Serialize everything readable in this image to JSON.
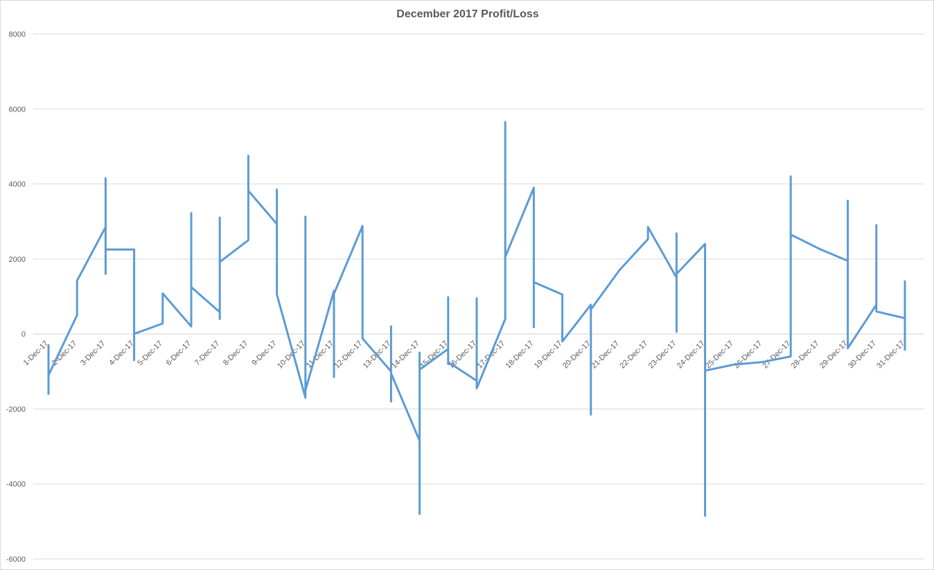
{
  "chart_data": {
    "type": "line",
    "title": "December 2017 Profit/Loss",
    "xlabel": "",
    "ylabel": "",
    "ylim": [
      -6000,
      8000
    ],
    "yticks": [
      8000,
      6000,
      4000,
      2000,
      0,
      -2000,
      -4000,
      -6000
    ],
    "grid": true,
    "legend": "none",
    "color": "#5b9bd5",
    "categories": [
      "1-Dec-17",
      "2-Dec-17",
      "3-Dec-17",
      "4-Dec-17",
      "5-Dec-17",
      "6-Dec-17",
      "7-Dec-17",
      "8-Dec-17",
      "9-Dec-17",
      "10-Dec-17",
      "11-Dec-17",
      "12-Dec-17",
      "13-Dec-17",
      "14-Dec-17",
      "15-Dec-17",
      "16-Dec-17",
      "17-Dec-17",
      "18-Dec-17",
      "19-Dec-17",
      "20-Dec-17",
      "21-Dec-17",
      "22-Dec-17",
      "23-Dec-17",
      "24-Dec-17",
      "25-Dec-17",
      "26-Dec-17",
      "27-Dec-17",
      "28-Dec-17",
      "29-Dec-17",
      "30-Dec-17",
      "31-Dec-17"
    ],
    "points": [
      {
        "x": 0,
        "y": -300
      },
      {
        "x": 0,
        "y": -1600
      },
      {
        "x": 0,
        "y": -1100
      },
      {
        "x": 1,
        "y": 500
      },
      {
        "x": 1,
        "y": 1420
      },
      {
        "x": 2,
        "y": 2850
      },
      {
        "x": 2,
        "y": 4150
      },
      {
        "x": 2,
        "y": 1600
      },
      {
        "x": 2,
        "y": 2250
      },
      {
        "x": 3,
        "y": 2250
      },
      {
        "x": 3,
        "y": -700
      },
      {
        "x": 3,
        "y": 0
      },
      {
        "x": 4,
        "y": 280
      },
      {
        "x": 4,
        "y": 1080
      },
      {
        "x": 5,
        "y": 200
      },
      {
        "x": 5,
        "y": 3220
      },
      {
        "x": 5,
        "y": 1250
      },
      {
        "x": 6,
        "y": 580
      },
      {
        "x": 6,
        "y": 400
      },
      {
        "x": 6,
        "y": 3100
      },
      {
        "x": 6,
        "y": 1920
      },
      {
        "x": 7,
        "y": 2500
      },
      {
        "x": 7,
        "y": 4750
      },
      {
        "x": 7,
        "y": 3820
      },
      {
        "x": 8,
        "y": 2930
      },
      {
        "x": 8,
        "y": 3850
      },
      {
        "x": 8,
        "y": 1050
      },
      {
        "x": 9,
        "y": -1700
      },
      {
        "x": 9,
        "y": 3130
      },
      {
        "x": 9,
        "y": -1500
      },
      {
        "x": 10,
        "y": 1150
      },
      {
        "x": 10,
        "y": -1150
      },
      {
        "x": 10,
        "y": 1070
      },
      {
        "x": 11,
        "y": 2880
      },
      {
        "x": 11,
        "y": -120
      },
      {
        "x": 12,
        "y": -1000
      },
      {
        "x": 12,
        "y": 200
      },
      {
        "x": 12,
        "y": -1800
      },
      {
        "x": 12,
        "y": -1050
      },
      {
        "x": 13,
        "y": -2850
      },
      {
        "x": 13,
        "y": -4800
      },
      {
        "x": 13,
        "y": -500
      },
      {
        "x": 13,
        "y": -950
      },
      {
        "x": 14,
        "y": -400
      },
      {
        "x": 14,
        "y": 980
      },
      {
        "x": 14,
        "y": -800
      },
      {
        "x": 14,
        "y": -750
      },
      {
        "x": 15,
        "y": -1250
      },
      {
        "x": 15,
        "y": 950
      },
      {
        "x": 15,
        "y": -1450
      },
      {
        "x": 16,
        "y": 400
      },
      {
        "x": 16,
        "y": 5650
      },
      {
        "x": 16,
        "y": 2050
      },
      {
        "x": 17,
        "y": 3900
      },
      {
        "x": 17,
        "y": 180
      },
      {
        "x": 17,
        "y": 1380
      },
      {
        "x": 18,
        "y": 1050
      },
      {
        "x": 18,
        "y": -200
      },
      {
        "x": 19,
        "y": 780
      },
      {
        "x": 19,
        "y": -2150
      },
      {
        "x": 19,
        "y": 650
      },
      {
        "x": 20,
        "y": 1700
      },
      {
        "x": 21,
        "y": 2530
      },
      {
        "x": 21,
        "y": 2850
      },
      {
        "x": 22,
        "y": 1500
      },
      {
        "x": 22,
        "y": 2680
      },
      {
        "x": 22,
        "y": 60
      },
      {
        "x": 22,
        "y": 1600
      },
      {
        "x": 23,
        "y": 2400
      },
      {
        "x": 23,
        "y": -4850
      },
      {
        "x": 23,
        "y": -980
      },
      {
        "x": 24,
        "y": -820
      },
      {
        "x": 25,
        "y": -750
      },
      {
        "x": 26,
        "y": -600
      },
      {
        "x": 26,
        "y": 4200
      },
      {
        "x": 26,
        "y": 2650
      },
      {
        "x": 27,
        "y": 2270
      },
      {
        "x": 28,
        "y": 1950
      },
      {
        "x": 28,
        "y": 3550
      },
      {
        "x": 28,
        "y": -380
      },
      {
        "x": 29,
        "y": 780
      },
      {
        "x": 29,
        "y": 2900
      },
      {
        "x": 29,
        "y": 600
      },
      {
        "x": 30,
        "y": 420
      },
      {
        "x": 30,
        "y": 1400
      },
      {
        "x": 30,
        "y": -420
      }
    ]
  }
}
